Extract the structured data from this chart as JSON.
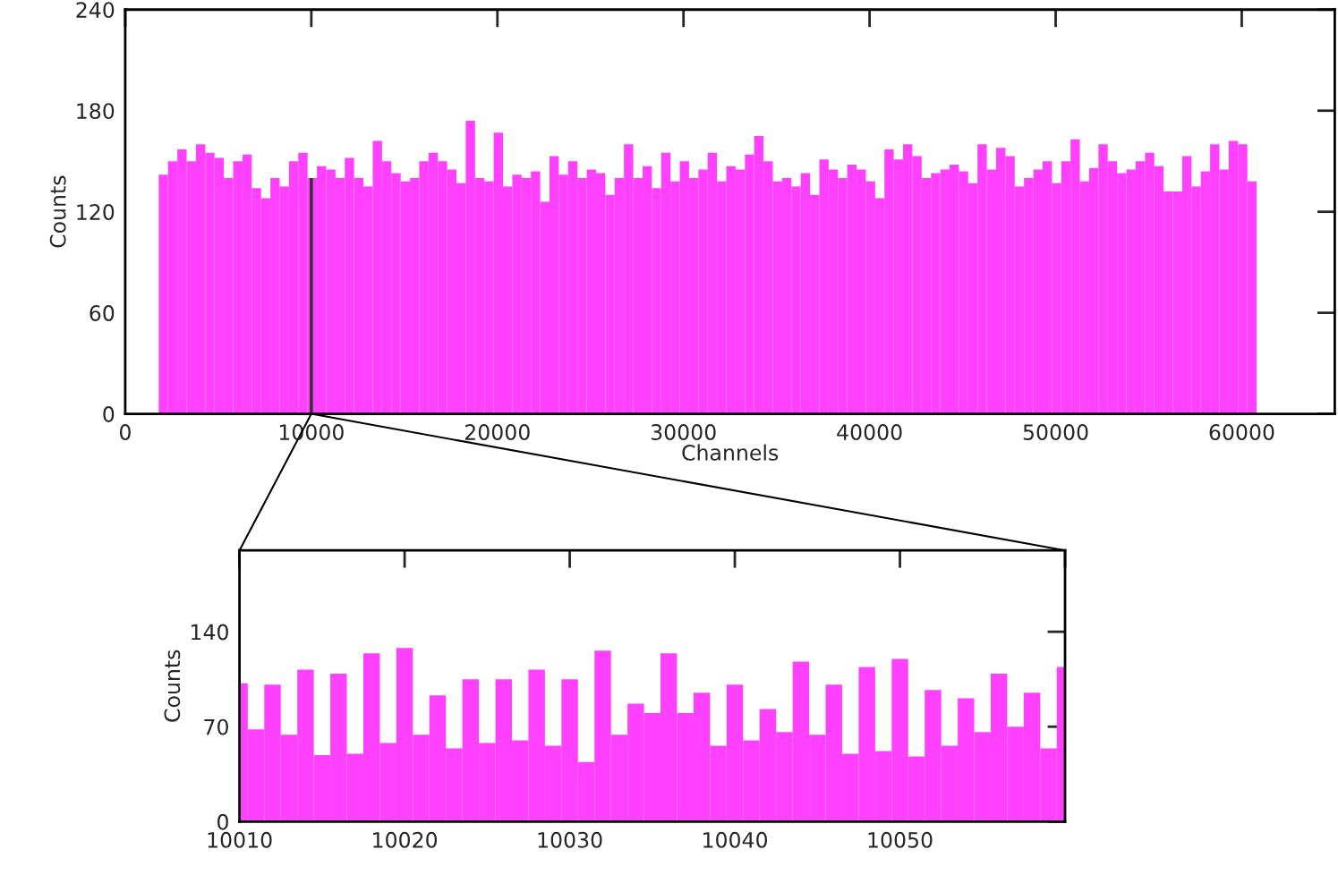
{
  "chart_data": [
    {
      "type": "histogram",
      "xlabel": "Channels",
      "ylabel": "Counts",
      "color": "#ff40ff",
      "xlim": [
        0,
        65000
      ],
      "ylim": [
        0,
        240
      ],
      "xticks": [
        0,
        10000,
        20000,
        30000,
        40000,
        50000,
        60000
      ],
      "yticks": [
        0,
        60,
        120,
        180,
        240
      ],
      "grid": false,
      "bins": [
        1800,
        2300,
        2800,
        3300,
        3800,
        4300,
        4800,
        5300,
        5800,
        6300,
        6800,
        7300,
        7800,
        8300,
        8800,
        9300,
        9800,
        10300,
        10800,
        11300,
        11800,
        12300,
        12800,
        13300,
        13800,
        14300,
        14800,
        15300,
        15800,
        16300,
        16800,
        17300,
        17800,
        18300,
        18800,
        19300,
        19800,
        20300,
        20800,
        21300,
        21800,
        22300,
        22800,
        23300,
        23800,
        24300,
        24800,
        25300,
        25800,
        26300,
        26800,
        27300,
        27800,
        28300,
        28800,
        29300,
        29800,
        30300,
        30800,
        31300,
        31800,
        32300,
        32800,
        33300,
        33800,
        34300,
        34800,
        35300,
        35800,
        36300,
        36800,
        37300,
        37800,
        38300,
        38800,
        39300,
        39800,
        40300,
        40800,
        41300,
        41800,
        42300,
        42800,
        43300,
        43800,
        44300,
        44800,
        45300,
        45800,
        46300,
        46800,
        47300,
        47800,
        48300,
        48800,
        49300,
        49800,
        50300,
        50800,
        51300,
        51800,
        52300,
        52800,
        53300,
        53800,
        54300,
        54800,
        55300,
        55800,
        56300,
        56800,
        57300,
        57800,
        58300,
        58800,
        59300,
        59800,
        60300,
        60800
      ],
      "values": [
        142,
        150,
        157,
        150,
        160,
        155,
        152,
        140,
        150,
        154,
        134,
        128,
        140,
        135,
        150,
        155,
        140,
        147,
        145,
        140,
        152,
        140,
        135,
        162,
        150,
        143,
        138,
        140,
        150,
        155,
        150,
        145,
        137,
        174,
        140,
        138,
        167,
        135,
        142,
        140,
        144,
        126,
        153,
        142,
        150,
        140,
        145,
        143,
        130,
        140,
        160,
        140,
        147,
        134,
        155,
        138,
        150,
        140,
        145,
        155,
        138,
        147,
        145,
        154,
        165,
        150,
        138,
        140,
        135,
        143,
        130,
        151,
        145,
        140,
        148,
        145,
        138,
        128,
        157,
        151,
        160,
        153,
        140,
        143,
        145,
        148,
        144,
        137,
        160,
        145,
        158,
        153,
        135,
        140,
        145,
        150,
        137,
        150,
        163,
        138,
        146,
        160,
        150,
        143,
        145,
        150,
        155,
        147,
        132,
        132,
        153,
        135,
        144,
        160,
        145,
        162,
        160,
        138
      ],
      "ref_lines": [
        {
          "axis": "x",
          "value": 10000
        }
      ]
    },
    {
      "type": "histogram",
      "ylabel": "Counts",
      "color": "#ff40ff",
      "xlim": [
        10010,
        10060
      ],
      "ylim": [
        0,
        200
      ],
      "xticks": [
        10010,
        10020,
        10030,
        10040,
        10050,
        {
          "value": 10060,
          "label": null
        }
      ],
      "yticks": [
        0,
        70,
        140
      ],
      "grid": false,
      "bins": [
        10009.5,
        10010.5,
        10011.5,
        10012.5,
        10013.5,
        10014.5,
        10015.5,
        10016.5,
        10017.5,
        10018.5,
        10019.5,
        10020.5,
        10021.5,
        10022.5,
        10023.5,
        10024.5,
        10025.5,
        10026.5,
        10027.5,
        10028.5,
        10029.5,
        10030.5,
        10031.5,
        10032.5,
        10033.5,
        10034.5,
        10035.5,
        10036.5,
        10037.5,
        10038.5,
        10039.5,
        10040.5,
        10041.5,
        10042.5,
        10043.5,
        10044.5,
        10045.5,
        10046.5,
        10047.5,
        10048.5,
        10049.5,
        10050.5,
        10051.5,
        10052.5,
        10053.5,
        10054.5,
        10055.5,
        10056.5,
        10057.5,
        10058.5,
        10059.5,
        10060.5
      ],
      "values": [
        102,
        68,
        101,
        64,
        112,
        49,
        109,
        50,
        124,
        58,
        128,
        64,
        93,
        54,
        105,
        58,
        105,
        60,
        112,
        56,
        105,
        44,
        126,
        64,
        87,
        80,
        124,
        80,
        95,
        56,
        101,
        60,
        83,
        66,
        118,
        64,
        101,
        50,
        114,
        52,
        120,
        48,
        97,
        56,
        91,
        66,
        109,
        70,
        95,
        54,
        114
      ]
    }
  ]
}
